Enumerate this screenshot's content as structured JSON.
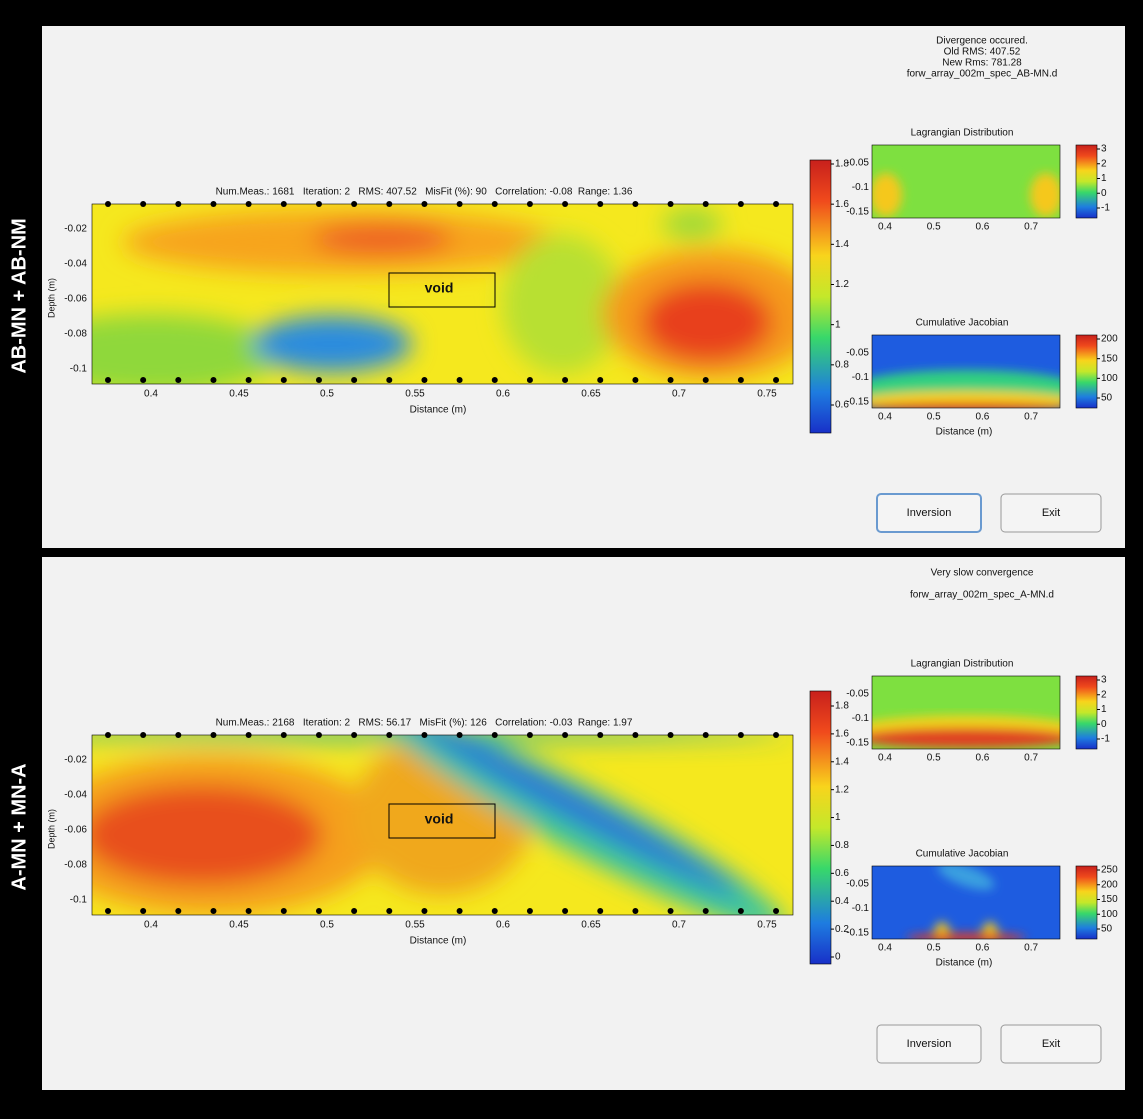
{
  "panels": [
    {
      "side_label": "AB-MN + AB-NM",
      "status": [
        "Divergence occured.",
        "Old RMS: 407.52",
        "New Rms: 781.28",
        "forw_array_002m_spec_AB-MN.d"
      ],
      "main_plot": {
        "title": "Num.Meas.: 1681   Iteration: 2   RMS: 407.52   MisFit (%): 90   Correlation: -0.08  Range: 1.36",
        "annotation": "void",
        "xlabel": "Distance (m)",
        "ylabel": "Depth (m)",
        "xticks": [
          "0.4",
          "0.45",
          "0.5",
          "0.55",
          "0.6",
          "0.65",
          "0.7",
          "0.75"
        ],
        "yticks": [
          "-0.02",
          "-0.04",
          "-0.06",
          "-0.08",
          "-0.1"
        ],
        "colorbar_ticks": [
          "1.8",
          "1.6",
          "1.4",
          "1.2",
          "1",
          "0.8",
          "0.6"
        ]
      },
      "lagrangian": {
        "title": "Lagrangian Distribution",
        "xticks": [
          "0.4",
          "0.5",
          "0.6",
          "0.7"
        ],
        "yticks": [
          "-0.05",
          "-0.1",
          "-0.15"
        ],
        "colorbar_ticks": [
          "3",
          "2",
          "1",
          "0",
          "-1"
        ]
      },
      "jacobian": {
        "title": "Cumulative Jacobian",
        "xlabel": "Distance (m)",
        "xticks": [
          "0.4",
          "0.5",
          "0.6",
          "0.7"
        ],
        "yticks": [
          "-0.05",
          "-0.1",
          "-0.15"
        ],
        "colorbar_ticks": [
          "200",
          "150",
          "100",
          "50"
        ]
      },
      "buttons": [
        "Inversion",
        "Exit"
      ]
    },
    {
      "side_label": "A-MN + MN-A",
      "status": [
        "Very slow convergence",
        "forw_array_002m_spec_A-MN.d"
      ],
      "main_plot": {
        "title": "Num.Meas.: 2168   Iteration: 2   RMS: 56.17   MisFit (%): 126   Correlation: -0.03  Range: 1.97",
        "annotation": "void",
        "xlabel": "Distance (m)",
        "ylabel": "Depth (m)",
        "xticks": [
          "0.4",
          "0.45",
          "0.5",
          "0.55",
          "0.6",
          "0.65",
          "0.7",
          "0.75"
        ],
        "yticks": [
          "-0.02",
          "-0.04",
          "-0.06",
          "-0.08",
          "-0.1"
        ],
        "colorbar_ticks": [
          "1.8",
          "1.6",
          "1.4",
          "1.2",
          "1",
          "0.8",
          "0.6",
          "0.4",
          "0.2",
          "0"
        ]
      },
      "lagrangian": {
        "title": "Lagrangian Distribution",
        "xticks": [
          "0.4",
          "0.5",
          "0.6",
          "0.7"
        ],
        "yticks": [
          "-0.05",
          "-0.1",
          "-0.15"
        ],
        "colorbar_ticks": [
          "3",
          "2",
          "1",
          "0",
          "-1"
        ]
      },
      "jacobian": {
        "title": "Cumulative Jacobian",
        "xlabel": "Distance (m)",
        "xticks": [
          "0.4",
          "0.5",
          "0.6",
          "0.7"
        ],
        "yticks": [
          "-0.05",
          "-0.1",
          "-0.15"
        ],
        "colorbar_ticks": [
          "250",
          "200",
          "150",
          "100",
          "50"
        ]
      },
      "buttons": [
        "Inversion",
        "Exit"
      ]
    }
  ]
}
